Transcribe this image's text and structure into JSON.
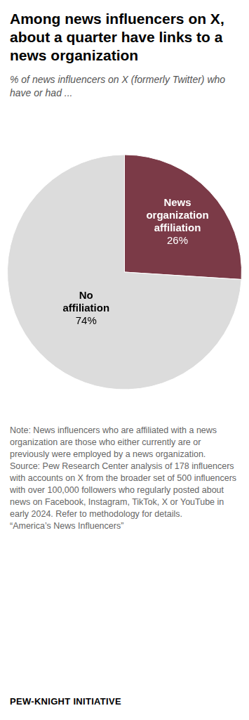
{
  "chart_data": {
    "type": "pie",
    "title": "Among news influencers on X, about a quarter have links to a news organization",
    "subtitle": "% of news influencers on X (formerly Twitter) who have or had ...",
    "categories": [
      "News organization affiliation",
      "No affiliation"
    ],
    "values": [
      26,
      74
    ],
    "value_labels": [
      "26%",
      "74%"
    ],
    "colors": [
      "#7b3a47",
      "#dcdcdc"
    ],
    "data_labels": true,
    "note": "Note: News influencers who are affiliated with a news organization are those who either currently are or previously were employed by a news organization.",
    "source": "Source: Pew Research Center analysis of 178 influencers with accounts on X from the broader set of 500 influencers with over 100,000 followers who regularly posted about news on Facebook, Instagram, TikTok, X or YouTube in early 2024. Refer to methodology for details.",
    "report": "“America’s News Influencers”",
    "credit": "PEW-KNIGHT INITIATIVE"
  }
}
